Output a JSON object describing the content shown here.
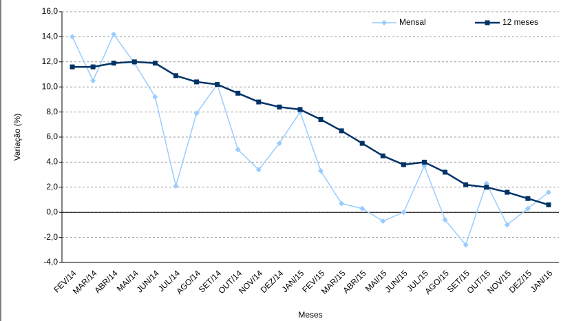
{
  "chart_data": {
    "type": "line",
    "y_label": "Variação (%)",
    "x_label": "Meses",
    "categories": [
      "FEV/14",
      "MAR/14",
      "ABR/14",
      "MAI/14",
      "JUN/14",
      "JUL/14",
      "AGO/14",
      "SET/14",
      "OUT/14",
      "NOV/14",
      "DEZ/14",
      "JAN/15",
      "FEV/15",
      "MAR/15",
      "ABR/15",
      "MAI/15",
      "JUN/15",
      "JUL/15",
      "AGO/15",
      "SET/15",
      "OUT/15",
      "NOV/15",
      "DEZ/15",
      "JAN/16"
    ],
    "series": [
      {
        "name": "Mensal",
        "color": "#99ccff",
        "marker": "diamond",
        "values": [
          14.0,
          10.5,
          14.2,
          11.9,
          9.2,
          2.1,
          7.9,
          10.2,
          5.0,
          3.4,
          5.5,
          8.0,
          3.3,
          0.7,
          0.3,
          -0.7,
          0.0,
          3.7,
          -0.6,
          -2.6,
          2.3,
          -1.0,
          0.3,
          1.6
        ]
      },
      {
        "name": "12 meses",
        "color": "#003366",
        "marker": "square",
        "values": [
          11.6,
          11.6,
          11.9,
          12.0,
          11.9,
          10.9,
          10.4,
          10.2,
          9.5,
          8.8,
          8.4,
          8.2,
          7.4,
          6.5,
          5.5,
          4.5,
          3.8,
          4.0,
          3.2,
          2.2,
          2.0,
          1.6,
          1.1,
          0.6
        ]
      }
    ],
    "ylim": [
      -4,
      16
    ],
    "yticks": [
      {
        "value": -4,
        "label": "-4,0"
      },
      {
        "value": -2,
        "label": "-2,0"
      },
      {
        "value": 0,
        "label": "0,0"
      },
      {
        "value": 2,
        "label": "2,0"
      },
      {
        "value": 4,
        "label": "4,0"
      },
      {
        "value": 6,
        "label": "6,0"
      },
      {
        "value": 8,
        "label": "8,0"
      },
      {
        "value": 10,
        "label": "10,0"
      },
      {
        "value": 12,
        "label": "12,0"
      },
      {
        "value": 14,
        "label": "14,0"
      },
      {
        "value": 16,
        "label": "16,0"
      }
    ],
    "grid": true,
    "legend": "top-right"
  }
}
